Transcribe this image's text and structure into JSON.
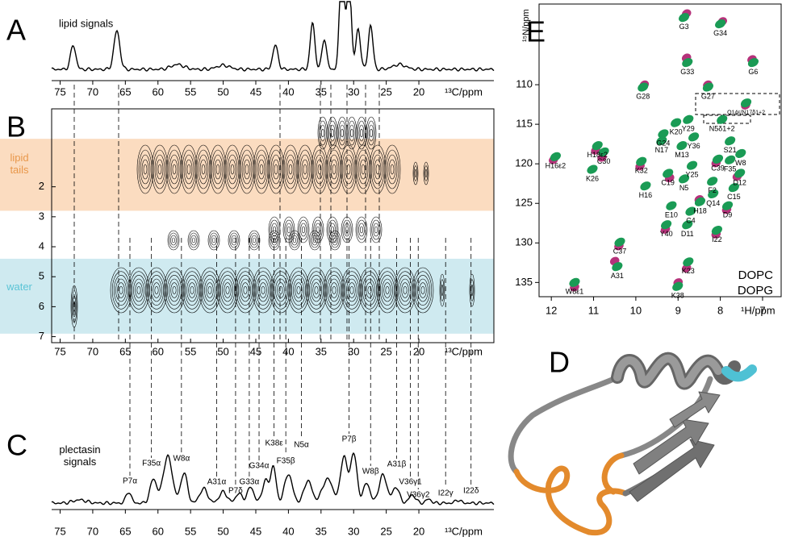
{
  "panels": {
    "A": {
      "letter": "A",
      "title": "lipid signals",
      "xlim": [
        76.3,
        8.5
      ],
      "xticks": [
        75,
        70,
        65,
        60,
        55,
        50,
        45,
        40,
        35,
        30,
        25,
        20
      ],
      "xlabel": "¹³C/ppm"
    },
    "B": {
      "letter": "B",
      "xlim": [
        76.3,
        8.5
      ],
      "xticks": [
        75,
        70,
        65,
        60,
        55,
        50,
        45,
        40,
        35,
        30,
        25,
        20
      ],
      "xlabel": "¹³C/ppm",
      "ylim": [
        -0.6,
        7.2
      ],
      "yticks": [
        2,
        3,
        4,
        5,
        6,
        7
      ],
      "bands": [
        {
          "label": "lipid tails",
          "range": [
            0.4,
            2.8
          ],
          "color": "#fbdcc0",
          "text_color": "#e8974a"
        },
        {
          "label": "water",
          "range": [
            4.4,
            6.9
          ],
          "color": "#cfeaf0",
          "text_color": "#5bc4d6"
        }
      ]
    },
    "C": {
      "letter": "C",
      "title": "plectasin signals",
      "xlim": [
        76.3,
        8.5
      ],
      "xticks": [
        75,
        70,
        65,
        60,
        55,
        50,
        45,
        40,
        35,
        30,
        25,
        20
      ],
      "xlabel": "¹³C/ppm",
      "annotations": [
        {
          "text": "P7α",
          "x": 64.3,
          "color": "#c0652a"
        },
        {
          "text": "F35α",
          "x": 61.0,
          "color": "#c0652a"
        },
        {
          "text": "W8α",
          "x": 56.4,
          "color": "#c0652a"
        },
        {
          "text": "A31α",
          "x": 51.0,
          "color": "#c0652a"
        },
        {
          "text": "P7δ",
          "x": 48.1,
          "color": "#c0652a"
        },
        {
          "text": "G33α",
          "x": 46.0,
          "color": "#c0652a"
        },
        {
          "text": "G34α",
          "x": 44.5,
          "color": "#c0652a"
        },
        {
          "text": "K38ε",
          "x": 42.2,
          "color": "#c0652a"
        },
        {
          "text": "F35β",
          "x": 40.4,
          "color": "#c0652a"
        },
        {
          "text": "N5α",
          "x": 38.0,
          "color": "#c0652a"
        },
        {
          "text": "P7β",
          "x": 30.7,
          "color": "#c0652a"
        },
        {
          "text": "W8β",
          "x": 27.4,
          "color": "#c0652a"
        },
        {
          "text": "A31β",
          "x": 23.4,
          "color": "#c0652a"
        },
        {
          "text": "V36γ1",
          "x": 21.3,
          "color": "#c0652a"
        },
        {
          "text": "V36γ2",
          "x": 20.1,
          "color": "#c0652a"
        },
        {
          "text": "I22γ",
          "x": 15.9,
          "color": "#4a5fa0"
        },
        {
          "text": "I22δ",
          "x": 12.0,
          "color": "#4a5fa0"
        }
      ]
    },
    "D": {
      "letter": "D"
    }
  },
  "chart_data": {
    "type": "scatter",
    "letter": "E",
    "xlabel": "¹H/ppm",
    "ylabel": "¹⁵N/ppm",
    "xlim": [
      12.29,
      6.56
    ],
    "xticks": [
      12,
      11,
      10,
      9,
      8,
      7
    ],
    "ylim": [
      99.8,
      136.8
    ],
    "yticks": [
      110,
      115,
      120,
      125,
      130,
      135
    ],
    "series": [
      {
        "name": "DOPC",
        "color": "#1a9b55",
        "labels": [
          "G3",
          "G34",
          "G33",
          "G6",
          "G27",
          "G28",
          "Y29",
          "K20",
          "G24",
          "H18ε2",
          "H16ε2",
          "N17",
          "Y36",
          "M13",
          "S21",
          "W8",
          "C30",
          "K32",
          "Y25",
          "C39",
          "F35",
          "C19",
          "N5",
          "D12",
          "K26",
          "F2",
          "C15",
          "Q14",
          "H16",
          "H18",
          "E10",
          "C4",
          "D9",
          "Y40",
          "D11",
          "I22",
          "C37",
          "W8ε1",
          "A31",
          "K23",
          "K38",
          "Q14ε/N17δ1+2",
          "N5δ1+2"
        ],
        "x": [
          8.86,
          8.0,
          8.78,
          7.22,
          8.29,
          9.83,
          8.76,
          9.05,
          9.35,
          10.91,
          11.9,
          9.39,
          8.63,
          8.91,
          7.77,
          7.52,
          10.76,
          9.87,
          8.67,
          8.06,
          7.77,
          9.24,
          8.86,
          7.54,
          11.03,
          8.19,
          7.68,
          8.17,
          9.77,
          8.48,
          9.16,
          8.7,
          7.83,
          9.28,
          8.78,
          8.08,
          10.38,
          11.45,
          10.44,
          8.76,
          9.01,
          7.39,
          7.96
        ],
        "y": [
          101.5,
          102.3,
          107.2,
          107.2,
          110.3,
          110.3,
          114.4,
          114.8,
          116.2,
          117.7,
          119.1,
          117.1,
          116.6,
          117.7,
          117.1,
          118.7,
          118.5,
          119.7,
          120.2,
          119.4,
          119.5,
          121.2,
          121.9,
          121.2,
          120.7,
          122.2,
          123.0,
          123.8,
          122.8,
          124.8,
          125.3,
          126.0,
          125.3,
          127.7,
          127.7,
          128.4,
          129.9,
          135.0,
          133.0,
          132.4,
          135.5,
          112.3,
          114.4
        ]
      },
      {
        "name": "DOPG",
        "color": "#b5327a",
        "x": [
          8.8,
          7.95,
          8.8,
          7.25,
          8.3,
          9.8,
          10.95,
          11.95,
          10.8,
          9.9,
          8.1,
          7.6,
          9.2,
          8.5,
          7.85,
          9.3,
          8.1,
          10.4,
          11.45,
          10.5,
          8.8,
          9.0,
          7.4
        ],
        "y": [
          101.0,
          102.0,
          106.6,
          106.8,
          110.0,
          110.0,
          118.3,
          119.5,
          119.2,
          120.3,
          119.9,
          121.6,
          121.8,
          124.5,
          125.8,
          128.3,
          128.9,
          130.4,
          135.6,
          132.3,
          133.2,
          135.0,
          112.6
        ]
      }
    ]
  }
}
